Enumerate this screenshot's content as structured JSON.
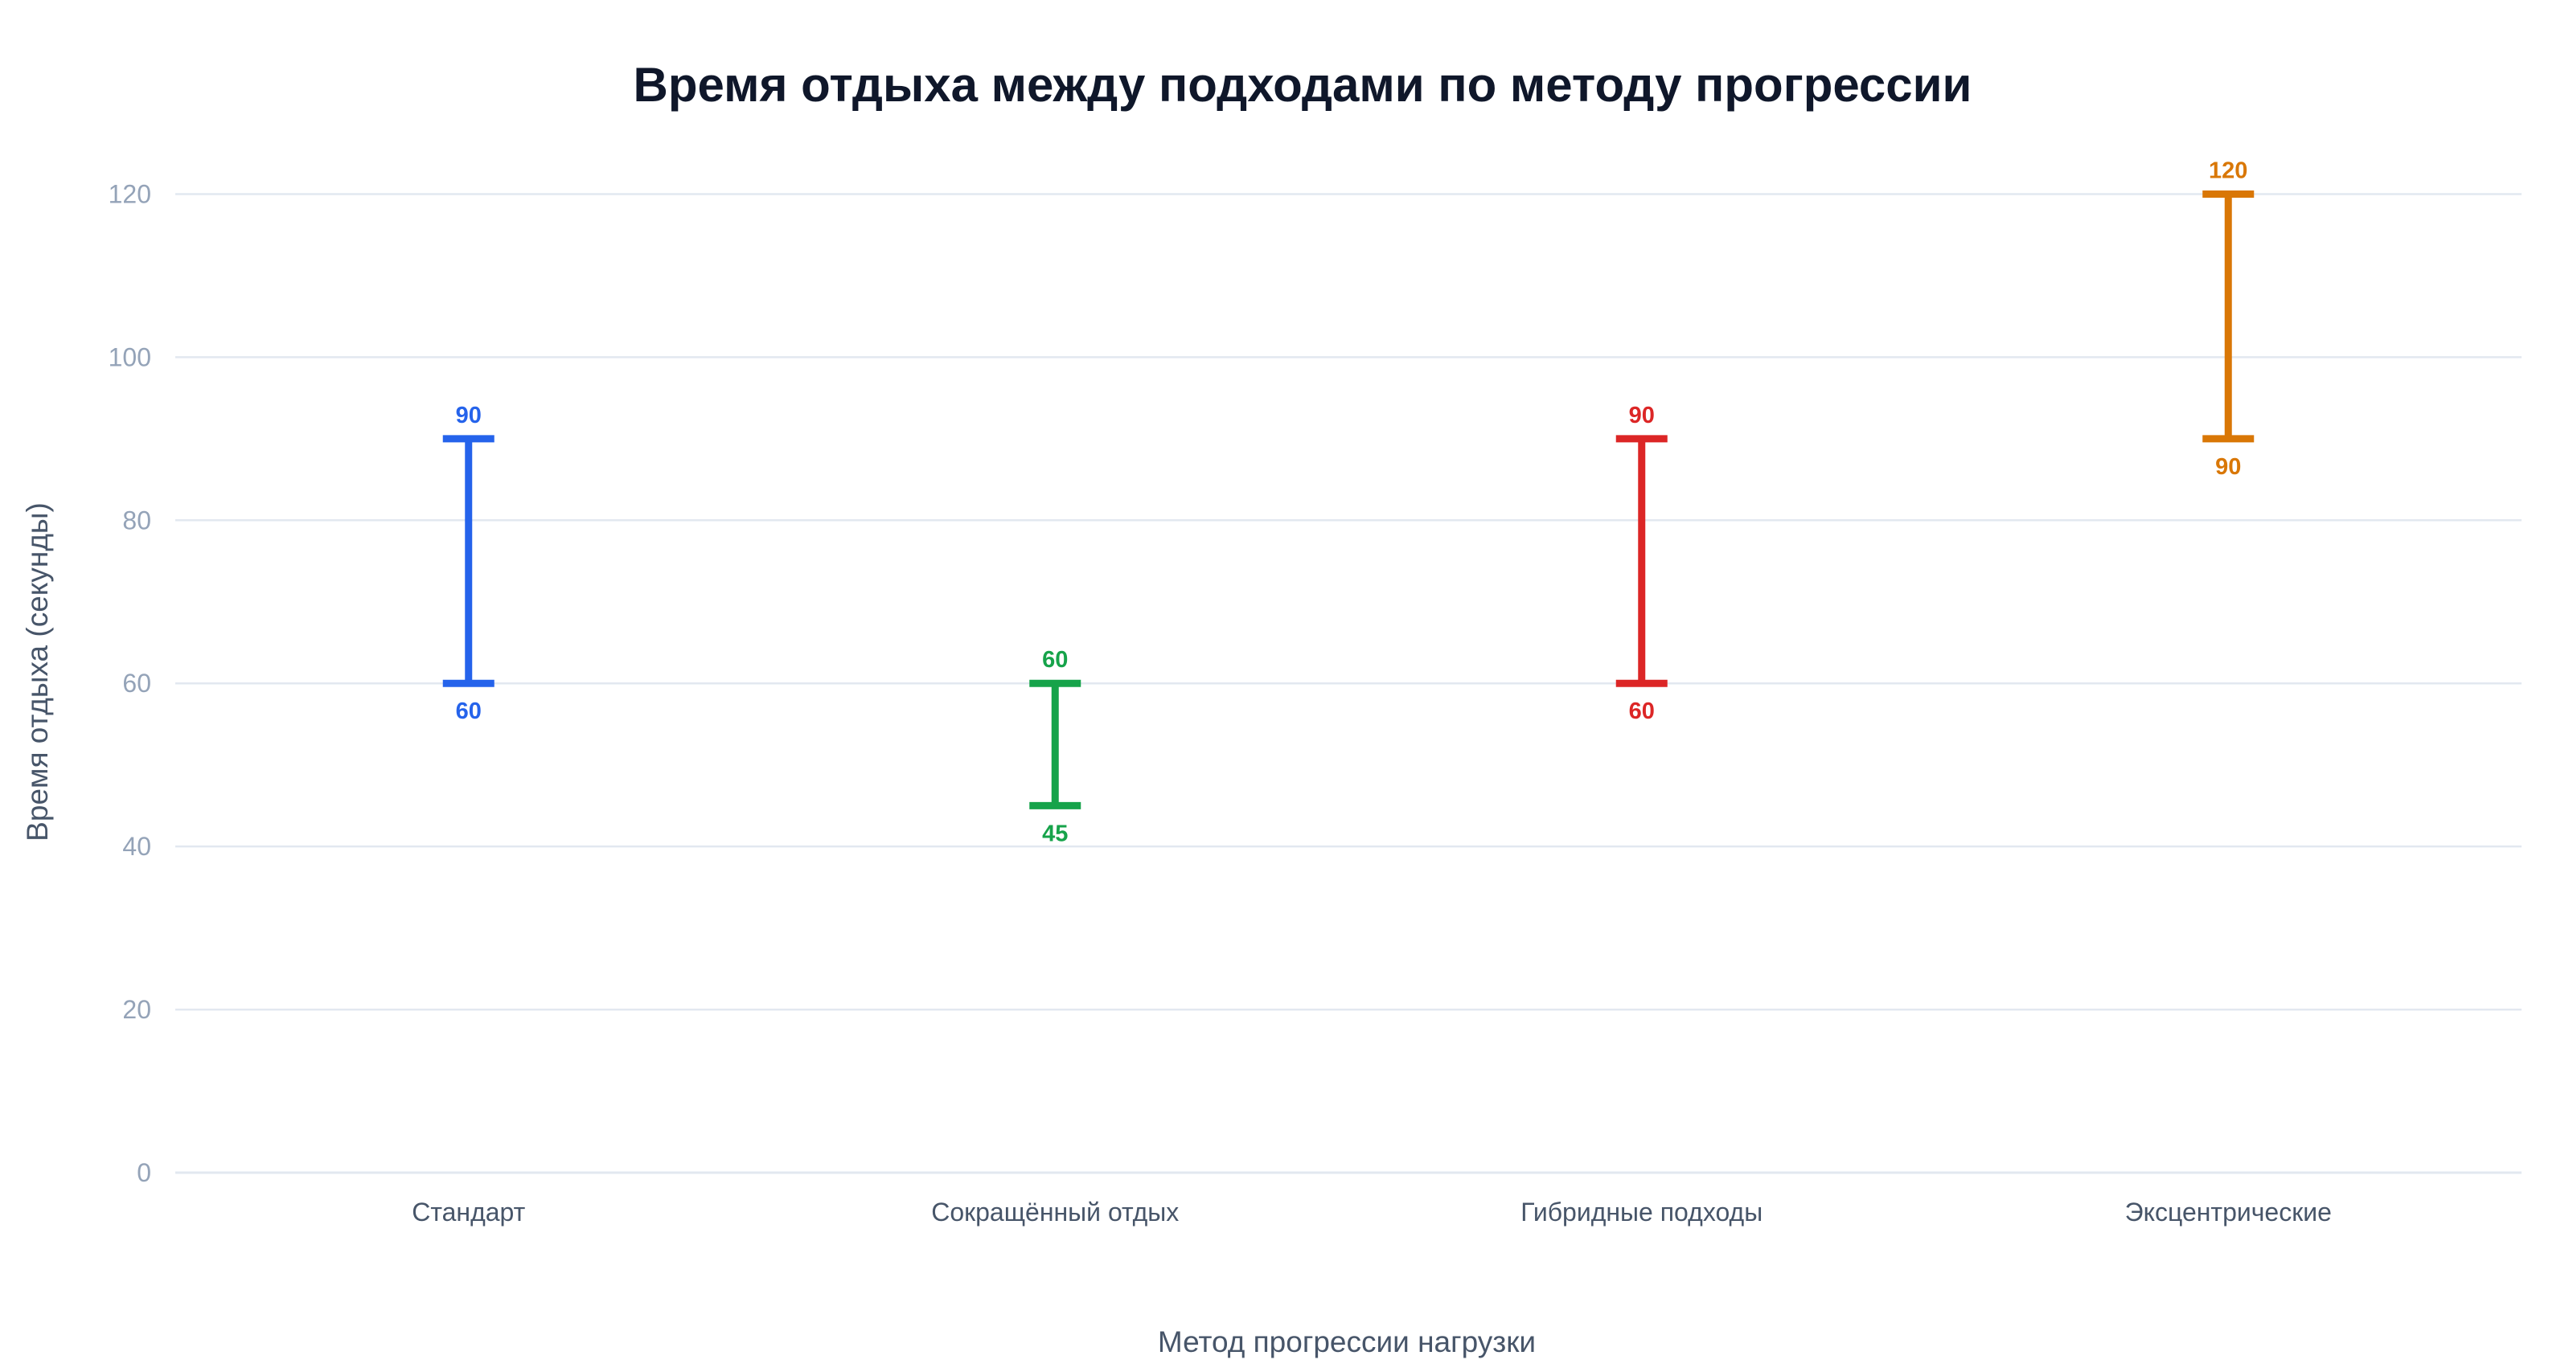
{
  "chart_data": {
    "type": "bar",
    "subtype": "range-errorbar",
    "title": "Время отдыха между подходами по методу прогрессии",
    "xlabel": "Метод прогрессии нагрузки",
    "ylabel": "Время отдыха (секунды)",
    "ylim": [
      0,
      130
    ],
    "yticks": [
      0,
      20,
      40,
      60,
      80,
      100,
      120
    ],
    "grid": true,
    "legend": "none",
    "categories": [
      "Стандарт",
      "Сокращённый отдых",
      "Гибридные подходы",
      "Эксцентрические"
    ],
    "ranges": [
      {
        "category": "Стандарт",
        "min": 60,
        "max": 90,
        "color": "#2563eb"
      },
      {
        "category": "Сокращённый отдых",
        "min": 45,
        "max": 60,
        "color": "#16a34a"
      },
      {
        "category": "Гибридные подходы",
        "min": 60,
        "max": 90,
        "color": "#dc2626"
      },
      {
        "category": "Эксцентрические",
        "min": 90,
        "max": 120,
        "color": "#d97706"
      }
    ]
  }
}
